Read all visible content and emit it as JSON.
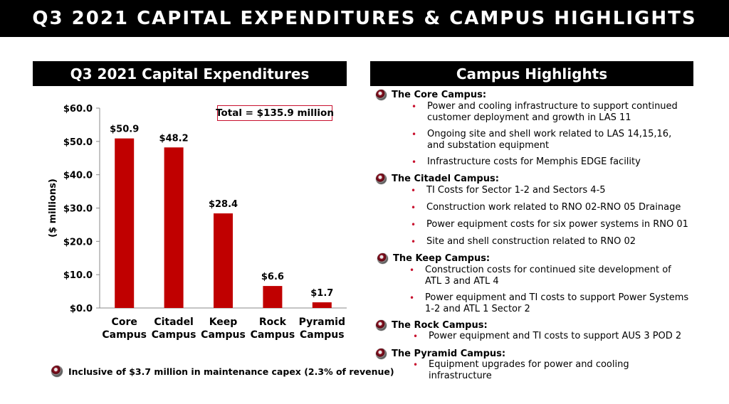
{
  "page_title": "Q3 2021 CAPITAL EXPENDITURES & CAMPUS HIGHLIGHTS",
  "left_panel": {
    "header": "Q3 2021 Capital Expenditures",
    "total_label": "Total = $135.9 million",
    "footnote": "Inclusive of $3.7 million in maintenance capex (2.3% of revenue)"
  },
  "right_panel": {
    "header": "Campus Highlights",
    "campuses": [
      {
        "name": "The Core Campus:",
        "items": [
          "Power and cooling infrastructure to support continued customer deployment and growth in LAS 11",
          "Ongoing site and shell work related to LAS 14,15,16, and substation equipment",
          "Infrastructure costs for Memphis EDGE facility"
        ]
      },
      {
        "name": "The Citadel Campus:",
        "items": [
          "TI Costs for Sector 1-2 and Sectors 4-5",
          "Construction work related to RNO 02-RNO 05 Drainage",
          "Power equipment costs for six power systems in RNO 01",
          "Site and shell construction related to RNO 02"
        ]
      },
      {
        "name": "The Keep Campus:",
        "items": [
          "Construction costs for continued site development of ATL 3 and ATL 4",
          "Power equipment and TI costs to support Power Systems 1-2 and ATL 1 Sector 2"
        ]
      },
      {
        "name": "The Rock Campus:",
        "items": [
          "Power equipment and TI costs to support AUS 3 POD 2"
        ]
      },
      {
        "name": "The Pyramid Campus:",
        "items": [
          "Equipment upgrades for power and cooling infrastructure"
        ]
      }
    ]
  },
  "colors": {
    "bar": "#c00000",
    "accent": "#c8102e",
    "header_bg": "#000000"
  },
  "chart_data": {
    "type": "bar",
    "categories": [
      "Core Campus",
      "Citadel Campus",
      "Keep Campus",
      "Rock Campus",
      "Pyramid Campus"
    ],
    "category_lines": [
      [
        "Core",
        "Campus"
      ],
      [
        "Citadel",
        "Campus"
      ],
      [
        "Keep",
        "Campus"
      ],
      [
        "Rock",
        "Campus"
      ],
      [
        "Pyramid",
        "Campus"
      ]
    ],
    "values": [
      50.9,
      48.2,
      28.4,
      6.6,
      1.7
    ],
    "data_labels": [
      "$50.9",
      "$48.2",
      "$28.4",
      "$6.6",
      "$1.7"
    ],
    "title": "Q3 2021 Capital Expenditures",
    "xlabel": "",
    "ylabel": "($ millions)",
    "ylim": [
      0,
      60
    ],
    "yticks": [
      0,
      10,
      20,
      30,
      40,
      50,
      60
    ],
    "ytick_labels": [
      "$0.0",
      "$10.0",
      "$20.0",
      "$30.0",
      "$40.0",
      "$50.0",
      "$60.0"
    ],
    "grid": false,
    "legend": "none"
  }
}
